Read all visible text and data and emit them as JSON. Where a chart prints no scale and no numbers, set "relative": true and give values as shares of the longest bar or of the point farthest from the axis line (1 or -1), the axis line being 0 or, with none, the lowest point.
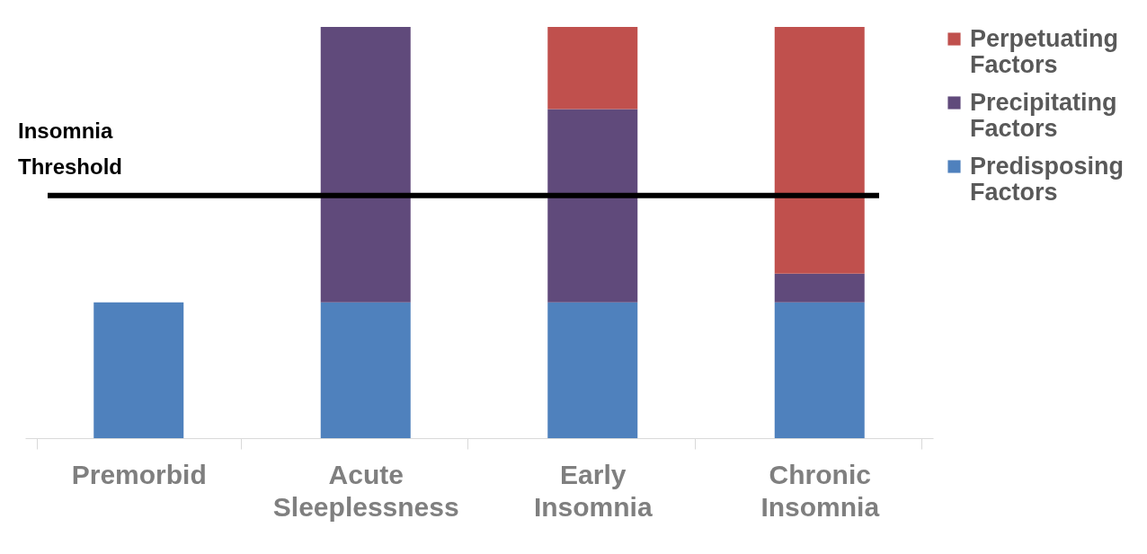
{
  "chart_data": {
    "type": "bar",
    "stacked": true,
    "relative": true,
    "legend": "right",
    "categories": [
      "Premorbid",
      "Acute Sleeplessness",
      "Early Insomnia",
      "Chronic Insomnia"
    ],
    "series": [
      {
        "name": "Predisposing Factors",
        "color": "#4f81bd",
        "values": [
          0.33,
          0.33,
          0.33,
          0.33
        ]
      },
      {
        "name": "Precipitating Factors",
        "color": "#604a7b",
        "values": [
          null,
          0.67,
          0.47,
          0.07
        ]
      },
      {
        "name": "Perpetuating Factors",
        "color": "#c0504d",
        "values": [
          null,
          null,
          0.2,
          0.6
        ]
      }
    ],
    "ref_lines": [
      {
        "axis": "y",
        "value": 0.59,
        "label": "Insomnia Threshold",
        "color": "#000000"
      }
    ]
  }
}
